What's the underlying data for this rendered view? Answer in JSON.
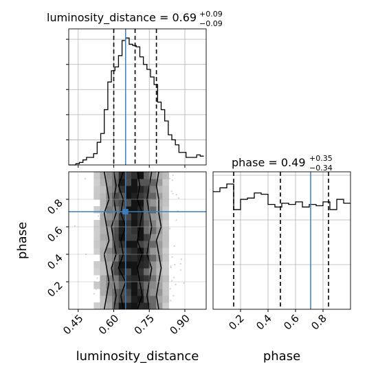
{
  "chart_data": [
    {
      "type": "histogram",
      "panel": "top-left",
      "title": {
        "param": "luminosity_distance",
        "value": "0.69",
        "plus": "+0.09",
        "minus": "−0.09"
      },
      "xlim": [
        0.41,
        0.99
      ],
      "grid": true,
      "bins": [
        0.41,
        0.425,
        0.44,
        0.455,
        0.47,
        0.485,
        0.5,
        0.515,
        0.53,
        0.545,
        0.56,
        0.575,
        0.59,
        0.605,
        0.62,
        0.635,
        0.65,
        0.665,
        0.68,
        0.695,
        0.71,
        0.725,
        0.74,
        0.755,
        0.77,
        0.785,
        0.8,
        0.815,
        0.83,
        0.845,
        0.86,
        0.875,
        0.89,
        0.905,
        0.92,
        0.935,
        0.95,
        0.965,
        0.98
      ],
      "counts": [
        0,
        0,
        1,
        2,
        4,
        6,
        6,
        9,
        18,
        25,
        44,
        66,
        75,
        78,
        87,
        99,
        101,
        96,
        95,
        94,
        86,
        80,
        76,
        70,
        64,
        50,
        44,
        35,
        24,
        20,
        16,
        10,
        10,
        6,
        6,
        6,
        8,
        7
      ],
      "ymax": 105,
      "quantiles": [
        0.6,
        0.69,
        0.78
      ],
      "truth": 0.65
    },
    {
      "type": "histogram",
      "panel": "bottom-right",
      "title": {
        "param": "phase",
        "value": "0.49",
        "plus": "+0.35",
        "minus": "−0.34"
      },
      "xlabel": "phase",
      "xlim": [
        0.0,
        1.0
      ],
      "xticks": [
        "0.2",
        "0.4",
        "0.6",
        "0.8"
      ],
      "grid": true,
      "bins": [
        0.0,
        0.05,
        0.1,
        0.15,
        0.2,
        0.25,
        0.3,
        0.35,
        0.4,
        0.45,
        0.5,
        0.55,
        0.6,
        0.65,
        0.7,
        0.75,
        0.8,
        0.85,
        0.9,
        0.95,
        1.0
      ],
      "counts": [
        0.92,
        0.95,
        0.98,
        0.78,
        0.86,
        0.87,
        0.91,
        0.9,
        0.82,
        0.8,
        0.83,
        0.82,
        0.84,
        0.8,
        0.82,
        0.81,
        0.84,
        0.78,
        0.86,
        0.83
      ],
      "ymax": 1.0,
      "quantiles": [
        0.15,
        0.49,
        0.84
      ],
      "truth": 0.71
    },
    {
      "type": "scatter",
      "panel": "bottom-left",
      "xlabel": "luminosity_distance",
      "ylabel": "phase",
      "xlim": [
        0.41,
        0.99
      ],
      "ylim": [
        0.0,
        1.0
      ],
      "xticks": [
        "0.45",
        "0.60",
        "0.75",
        "0.90"
      ],
      "yticks": [
        "0.2",
        "0.4",
        "0.6",
        "0.8"
      ],
      "grid": true,
      "truth": {
        "x": 0.65,
        "y": 0.71
      },
      "contour_levels": [
        {
          "level": "outer",
          "x_bounds": [
            [
              0.56,
              0.79
            ],
            [
              0.57,
              0.78
            ],
            [
              0.58,
              0.79
            ],
            [
              0.57,
              0.8
            ],
            [
              0.56,
              0.79
            ],
            [
              0.58,
              0.78
            ],
            [
              0.57,
              0.8
            ],
            [
              0.56,
              0.79
            ],
            [
              0.58,
              0.79
            ],
            [
              0.57,
              0.78
            ],
            [
              0.56,
              0.79
            ]
          ]
        },
        {
          "level": "middle",
          "x_bounds": [
            [
              0.6,
              0.75
            ],
            [
              0.61,
              0.74
            ],
            [
              0.6,
              0.75
            ],
            [
              0.59,
              0.76
            ],
            [
              0.61,
              0.74
            ],
            [
              0.6,
              0.75
            ],
            [
              0.59,
              0.76
            ],
            [
              0.61,
              0.75
            ],
            [
              0.6,
              0.74
            ],
            [
              0.61,
              0.75
            ],
            [
              0.6,
              0.76
            ]
          ]
        },
        {
          "level": "inner",
          "x_bounds": [
            [
              0.64,
              0.7
            ],
            [
              0.63,
              0.72
            ],
            [
              0.65,
              0.71
            ],
            [
              0.62,
              0.7
            ],
            [
              0.64,
              0.72
            ],
            [
              0.63,
              0.7
            ],
            [
              0.65,
              0.71
            ],
            [
              0.63,
              0.72
            ],
            [
              0.64,
              0.7
            ],
            [
              0.62,
              0.71
            ],
            [
              0.64,
              0.7
            ]
          ]
        }
      ]
    }
  ],
  "colors": {
    "truth": "#3a7dbf",
    "line": "#000000",
    "grid": "#b0b0b0",
    "scatter": "#9a9a9a"
  }
}
